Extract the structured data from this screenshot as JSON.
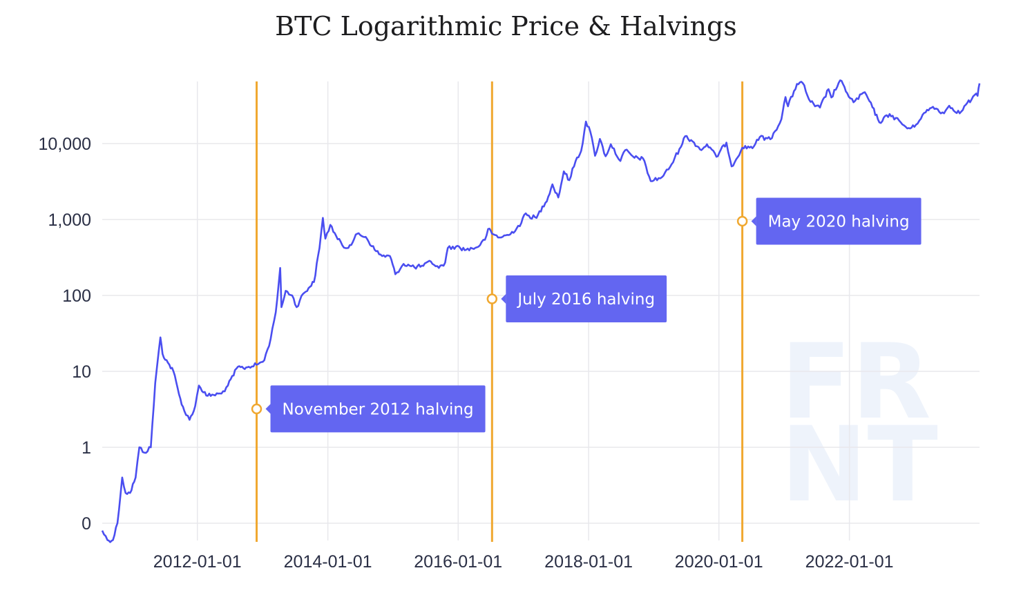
{
  "title": "BTC Logarithmic Price & Halvings",
  "watermark": {
    "line1": "FR",
    "line2": "NT",
    "color": "#eef3fb"
  },
  "colors": {
    "price_line": "#4a4ef0",
    "halving_line": "#f0a830",
    "annotation_bg": "#6366f1",
    "grid": "#e8e8ec"
  },
  "chart_data": {
    "type": "line",
    "title": "BTC Logarithmic Price & Halvings",
    "xlabel": "",
    "ylabel": "",
    "y_scale": "log",
    "y_ticks": [
      {
        "value": 0.1,
        "label": "0"
      },
      {
        "value": 1,
        "label": "1"
      },
      {
        "value": 10,
        "label": "10"
      },
      {
        "value": 100,
        "label": "100"
      },
      {
        "value": 1000,
        "label": "1,000"
      },
      {
        "value": 10000,
        "label": "10,000"
      }
    ],
    "x_ticks": [
      "2012-01-01",
      "2014-01-01",
      "2016-01-01",
      "2018-01-01",
      "2020-01-01",
      "2022-01-01"
    ],
    "xlim": [
      "2010-07-17",
      "2023-12-31"
    ],
    "ylim": [
      0.05,
      70000
    ],
    "grid": true,
    "series": [
      {
        "color": "#4a4ef0",
        "points": [
          [
            "2010-07-17",
            0.08
          ],
          [
            "2010-08-15",
            0.06
          ],
          [
            "2010-09-15",
            0.06
          ],
          [
            "2010-10-10",
            0.1
          ],
          [
            "2010-11-06",
            0.4
          ],
          [
            "2010-11-25",
            0.25
          ],
          [
            "2010-12-20",
            0.25
          ],
          [
            "2011-01-20",
            0.4
          ],
          [
            "2011-02-10",
            1.0
          ],
          [
            "2011-03-10",
            0.85
          ],
          [
            "2011-04-15",
            1.0
          ],
          [
            "2011-05-10",
            7.0
          ],
          [
            "2011-06-08",
            28
          ],
          [
            "2011-06-20",
            17
          ],
          [
            "2011-07-20",
            13
          ],
          [
            "2011-08-20",
            10
          ],
          [
            "2011-09-20",
            5
          ],
          [
            "2011-10-20",
            3
          ],
          [
            "2011-11-18",
            2.3
          ],
          [
            "2011-12-20",
            3.5
          ],
          [
            "2012-01-10",
            6.5
          ],
          [
            "2012-02-20",
            4.8
          ],
          [
            "2012-04-01",
            4.9
          ],
          [
            "2012-05-15",
            5.1
          ],
          [
            "2012-06-20",
            6.5
          ],
          [
            "2012-08-15",
            11.5
          ],
          [
            "2012-09-15",
            11
          ],
          [
            "2012-10-15",
            11.5
          ],
          [
            "2012-11-28",
            12.2
          ],
          [
            "2013-01-10",
            14
          ],
          [
            "2013-02-15",
            27
          ],
          [
            "2013-03-15",
            60
          ],
          [
            "2013-04-09",
            230
          ],
          [
            "2013-04-16",
            70
          ],
          [
            "2013-05-10",
            115
          ],
          [
            "2013-06-15",
            100
          ],
          [
            "2013-07-10",
            70
          ],
          [
            "2013-08-15",
            105
          ],
          [
            "2013-09-15",
            125
          ],
          [
            "2013-10-15",
            150
          ],
          [
            "2013-11-15",
            420
          ],
          [
            "2013-12-04",
            1050
          ],
          [
            "2013-12-18",
            560
          ],
          [
            "2014-01-15",
            850
          ],
          [
            "2014-02-25",
            550
          ],
          [
            "2014-04-10",
            420
          ],
          [
            "2014-05-20",
            500
          ],
          [
            "2014-06-15",
            650
          ],
          [
            "2014-08-01",
            590
          ],
          [
            "2014-09-20",
            400
          ],
          [
            "2014-11-01",
            330
          ],
          [
            "2014-12-15",
            330
          ],
          [
            "2015-01-14",
            190
          ],
          [
            "2015-03-01",
            260
          ],
          [
            "2015-05-01",
            235
          ],
          [
            "2015-06-20",
            245
          ],
          [
            "2015-08-01",
            280
          ],
          [
            "2015-09-15",
            230
          ],
          [
            "2015-10-20",
            270
          ],
          [
            "2015-11-04",
            420
          ],
          [
            "2015-12-20",
            440
          ],
          [
            "2016-02-15",
            400
          ],
          [
            "2016-04-15",
            430
          ],
          [
            "2016-05-30",
            540
          ],
          [
            "2016-06-17",
            750
          ],
          [
            "2016-07-09",
            650
          ],
          [
            "2016-08-20",
            580
          ],
          [
            "2016-10-20",
            640
          ],
          [
            "2016-12-20",
            900
          ],
          [
            "2017-01-05",
            1150
          ],
          [
            "2017-03-15",
            1050
          ],
          [
            "2017-05-20",
            2000
          ],
          [
            "2017-06-12",
            2900
          ],
          [
            "2017-07-15",
            1950
          ],
          [
            "2017-08-15",
            4300
          ],
          [
            "2017-09-15",
            3300
          ],
          [
            "2017-10-20",
            5900
          ],
          [
            "2017-11-20",
            8000
          ],
          [
            "2017-12-17",
            19500
          ],
          [
            "2018-01-10",
            14500
          ],
          [
            "2018-02-06",
            6900
          ],
          [
            "2018-03-05",
            11500
          ],
          [
            "2018-04-06",
            6800
          ],
          [
            "2018-05-05",
            9800
          ],
          [
            "2018-06-28",
            5900
          ],
          [
            "2018-07-25",
            8200
          ],
          [
            "2018-09-15",
            6500
          ],
          [
            "2018-11-01",
            6400
          ],
          [
            "2018-12-15",
            3200
          ],
          [
            "2019-02-15",
            3600
          ],
          [
            "2019-04-02",
            4900
          ],
          [
            "2019-05-25",
            8500
          ],
          [
            "2019-06-26",
            12500
          ],
          [
            "2019-08-15",
            10300
          ],
          [
            "2019-09-25",
            8200
          ],
          [
            "2019-10-26",
            9800
          ],
          [
            "2019-12-18",
            6700
          ],
          [
            "2020-02-12",
            10300
          ],
          [
            "2020-03-12",
            5000
          ],
          [
            "2020-05-11",
            8800
          ],
          [
            "2020-07-15",
            9200
          ],
          [
            "2020-08-17",
            12200
          ],
          [
            "2020-10-15",
            11400
          ],
          [
            "2020-12-16",
            21000
          ],
          [
            "2021-01-08",
            41000
          ],
          [
            "2021-01-22",
            31000
          ],
          [
            "2021-03-13",
            61000
          ],
          [
            "2021-04-14",
            63000
          ],
          [
            "2021-05-20",
            38000
          ],
          [
            "2021-06-22",
            31000
          ],
          [
            "2021-07-20",
            29800
          ],
          [
            "2021-09-06",
            52000
          ],
          [
            "2021-09-22",
            40500
          ],
          [
            "2021-11-10",
            68000
          ],
          [
            "2021-12-20",
            46000
          ],
          [
            "2022-01-24",
            35000
          ],
          [
            "2022-03-28",
            47500
          ],
          [
            "2022-05-10",
            30000
          ],
          [
            "2022-06-18",
            19000
          ],
          [
            "2022-08-14",
            24500
          ],
          [
            "2022-10-15",
            19100
          ],
          [
            "2022-11-21",
            15800
          ],
          [
            "2022-12-31",
            16600
          ],
          [
            "2023-02-15",
            24000
          ],
          [
            "2023-04-14",
            30500
          ],
          [
            "2023-06-15",
            25000
          ],
          [
            "2023-07-14",
            31500
          ],
          [
            "2023-09-11",
            25000
          ],
          [
            "2023-10-24",
            34500
          ],
          [
            "2023-11-15",
            37500
          ],
          [
            "2023-12-05",
            44000
          ],
          [
            "2023-12-20",
            42500
          ],
          [
            "2023-12-31",
            62000
          ]
        ]
      }
    ],
    "halvings": [
      {
        "date": "2012-11-28",
        "label": "November 2012 halving",
        "marker_value": 3.2
      },
      {
        "date": "2016-07-09",
        "label": "July 2016 halving",
        "marker_value": 90
      },
      {
        "date": "2020-05-11",
        "label": "May 2020 halving",
        "marker_value": 950
      }
    ]
  }
}
